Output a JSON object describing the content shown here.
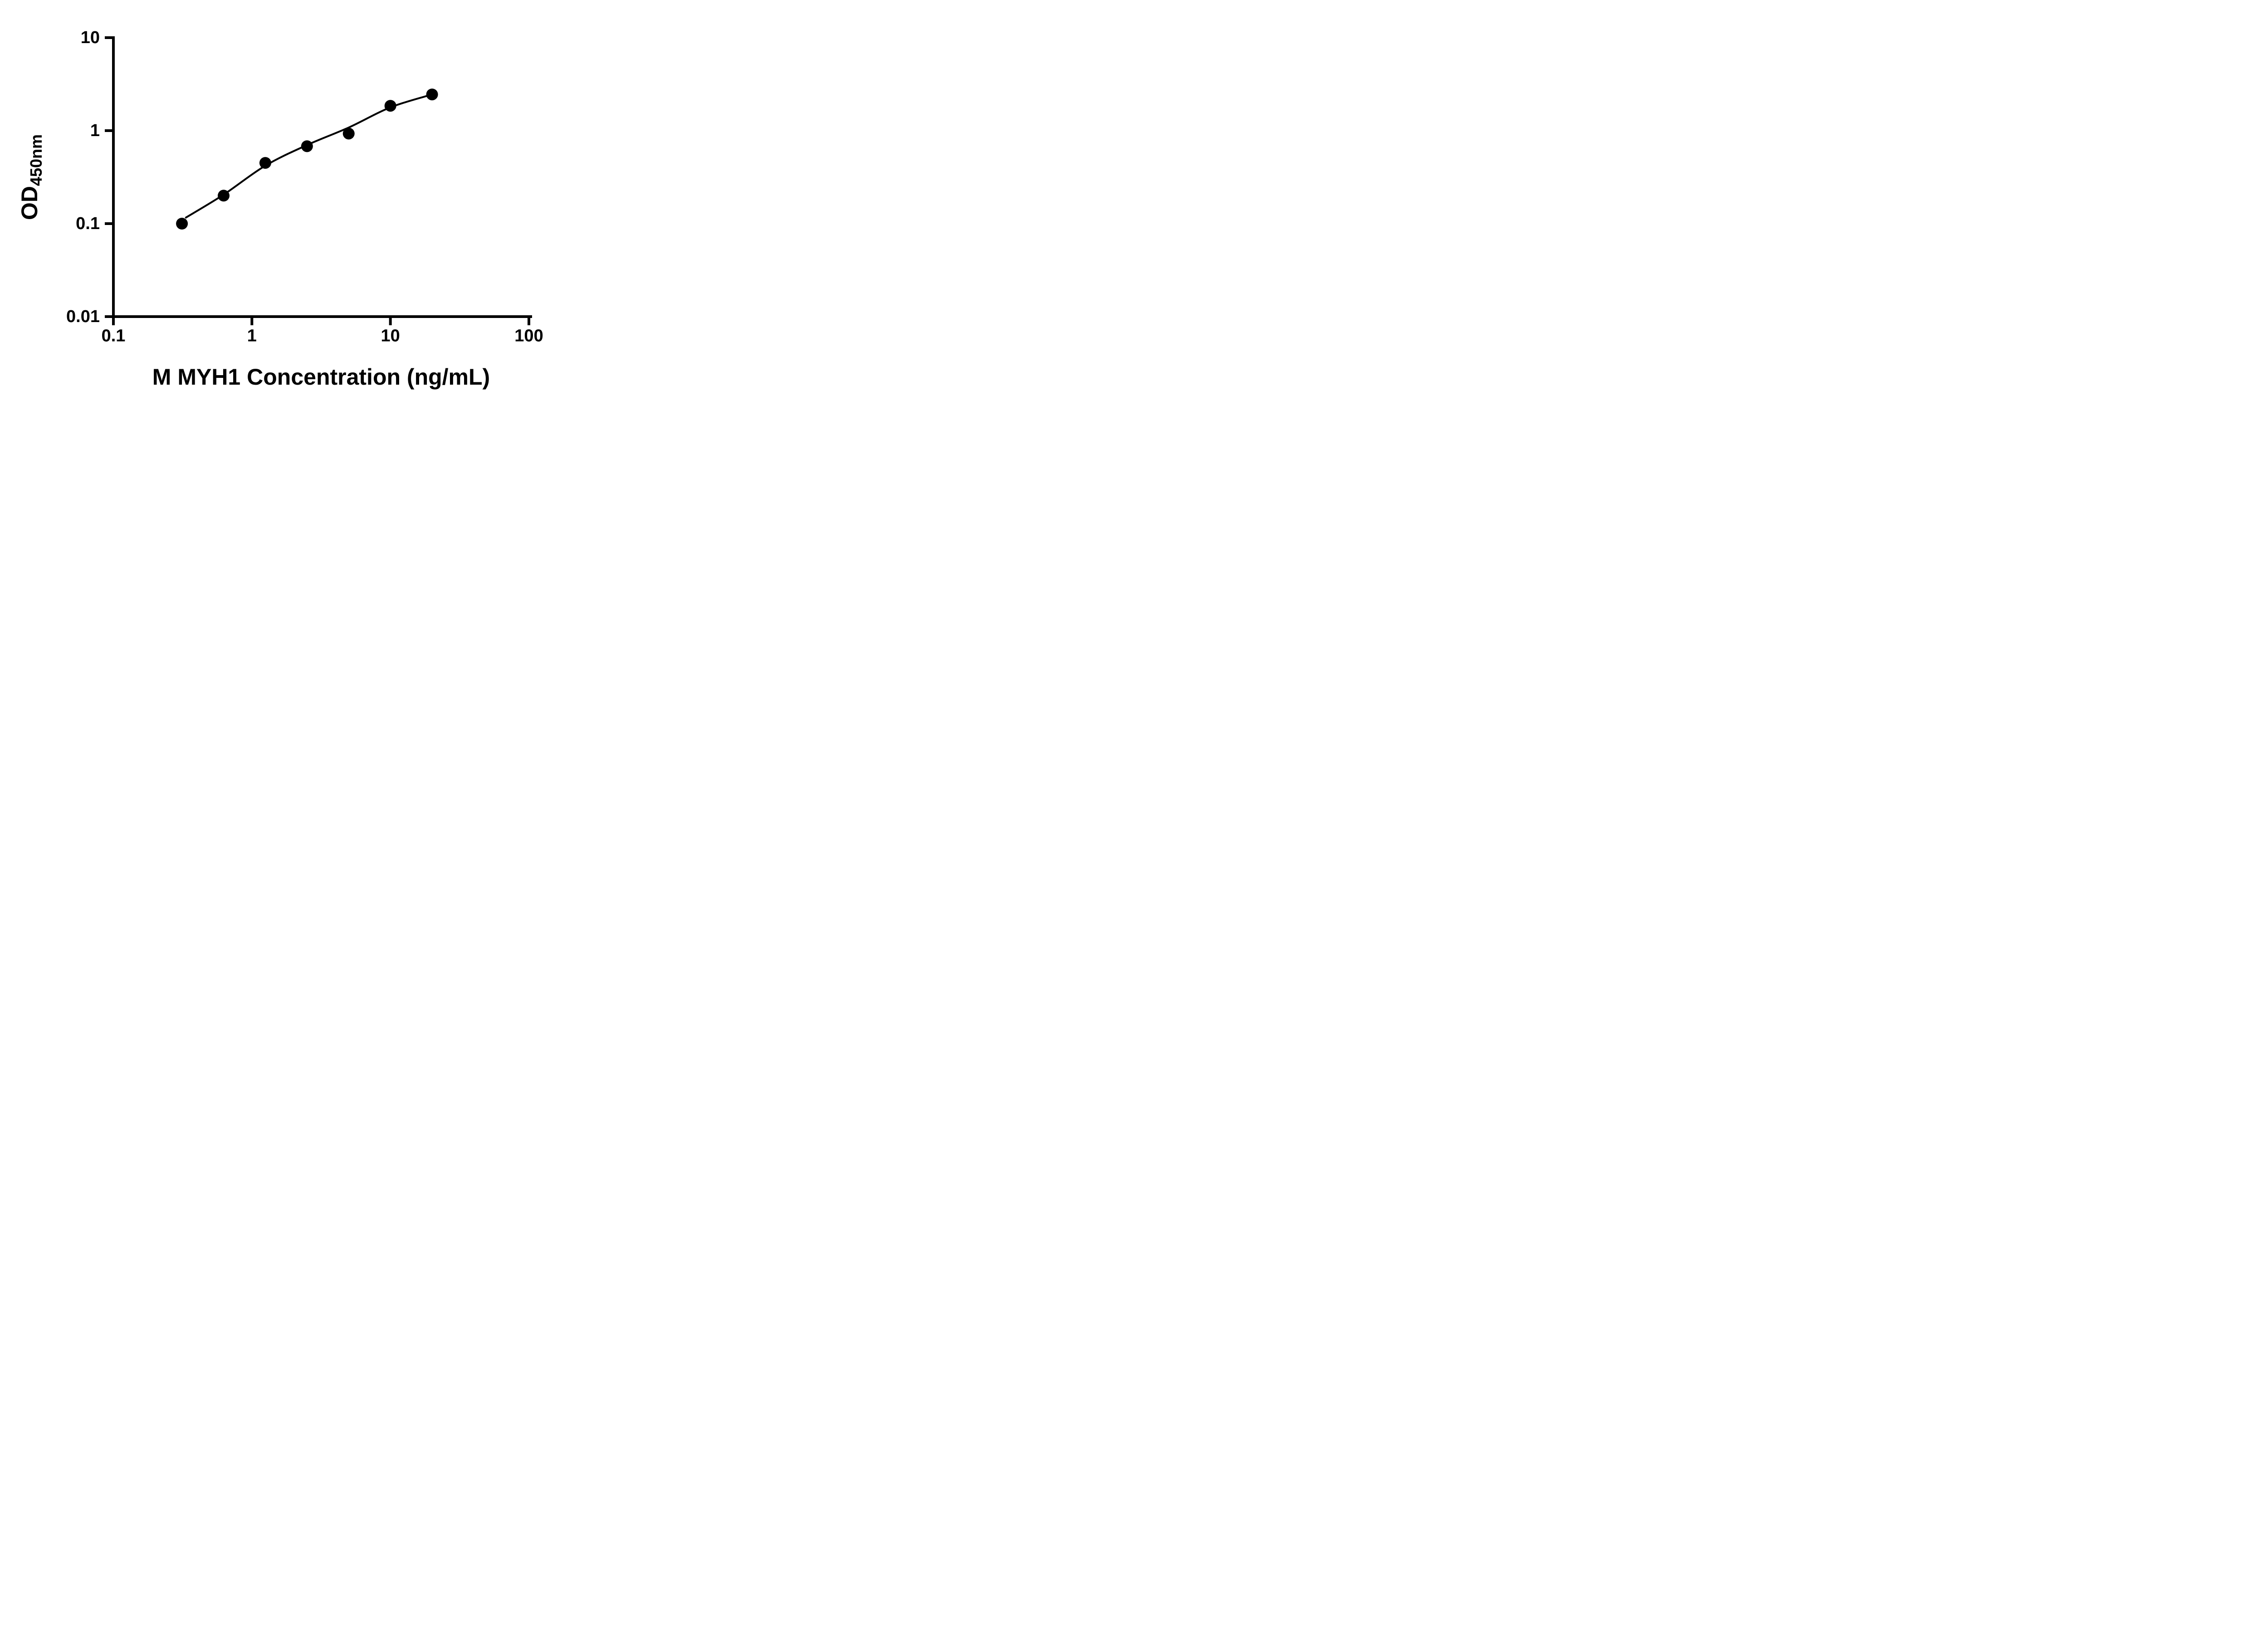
{
  "figure": {
    "background_color": "#ffffff",
    "axis_color": "#000000",
    "marker_color": "#000000",
    "line_color": "#000000"
  },
  "chart_data": {
    "type": "scatter",
    "title": "",
    "xlabel": "M MYH1 Concentration (ng/mL)",
    "ylabel_main": "OD",
    "ylabel_sub": "450nm",
    "x_scale": "log",
    "y_scale": "log",
    "xlim": [
      0.1,
      100
    ],
    "ylim": [
      0.01,
      10
    ],
    "grid": false,
    "legend": "none",
    "x_ticks": [
      {
        "v": 0.1,
        "label": "0.1"
      },
      {
        "v": 1,
        "label": "1"
      },
      {
        "v": 10,
        "label": "10"
      },
      {
        "v": 100,
        "label": "100"
      }
    ],
    "y_ticks": [
      {
        "v": 10,
        "label": "10"
      },
      {
        "v": 1,
        "label": "1"
      },
      {
        "v": 0.1,
        "label": "0.1"
      },
      {
        "v": 0.01,
        "label": "0.01"
      }
    ],
    "points": [
      {
        "x": 0.3125,
        "y": 0.1
      },
      {
        "x": 0.625,
        "y": 0.2
      },
      {
        "x": 1.25,
        "y": 0.45
      },
      {
        "x": 2.5,
        "y": 0.68
      },
      {
        "x": 5,
        "y": 0.93
      },
      {
        "x": 10,
        "y": 1.85
      },
      {
        "x": 20,
        "y": 2.45
      }
    ],
    "fit_curve": [
      {
        "x": 0.33,
        "y": 0.115
      },
      {
        "x": 0.625,
        "y": 0.205
      },
      {
        "x": 1.25,
        "y": 0.42
      },
      {
        "x": 2.5,
        "y": 0.7
      },
      {
        "x": 5,
        "y": 1.08
      },
      {
        "x": 10,
        "y": 1.78
      },
      {
        "x": 20,
        "y": 2.45
      }
    ]
  }
}
